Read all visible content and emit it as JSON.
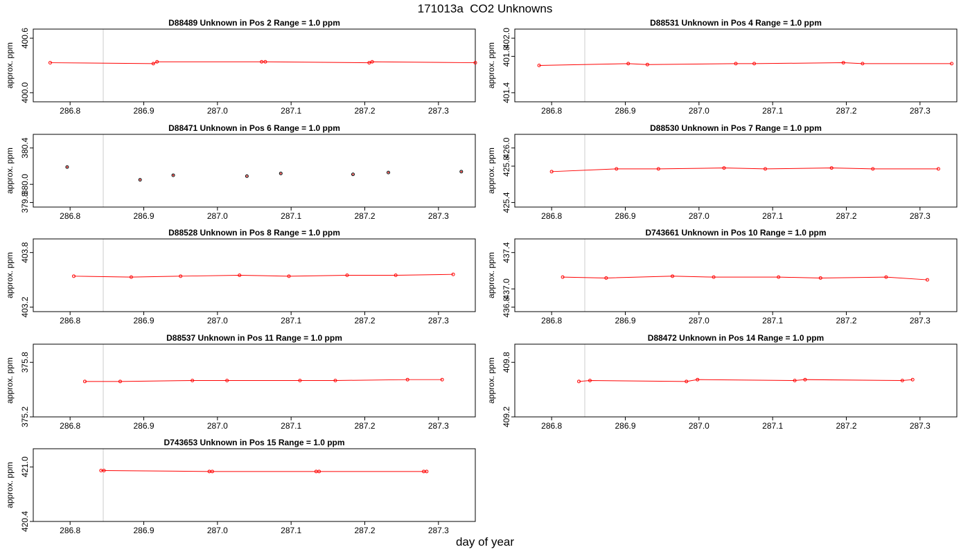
{
  "title": "171013a  CO2 Unknowns",
  "xlabel": "day of year",
  "ylabel": "approx. ppm",
  "colors": {
    "series": "#ff0000",
    "marker_black": "#000000",
    "frame": "#000000",
    "ref_line": "#cccccc"
  },
  "chart_data": [
    {
      "type": "line",
      "panel_title": "D88489    Unknown in Pos 2         Range = 1.0 ppm",
      "xlim": [
        286.75,
        287.35
      ],
      "ylim": [
        399.9,
        400.7
      ],
      "x_ticks": [
        "286.8",
        "286.9",
        "287.0",
        "287.1",
        "287.2",
        "287.3"
      ],
      "y_ticks": [
        "400.0",
        "400.6"
      ],
      "ref_lines_x": [
        286.845,
        287.35
      ],
      "series": [
        {
          "x": [
            286.773,
            286.913,
            286.918,
            287.06,
            287.065,
            287.206,
            287.21,
            287.35
          ],
          "y": [
            400.33,
            400.32,
            400.34,
            400.34,
            400.34,
            400.33,
            400.34,
            400.33
          ]
        }
      ],
      "markers_only": false
    },
    {
      "type": "line",
      "panel_title": "D88531    Unknown in Pos 4         Range = 1.0 ppm",
      "xlim": [
        286.75,
        287.35
      ],
      "ylim": [
        401.3,
        402.1
      ],
      "x_ticks": [
        "286.8",
        "286.9",
        "287.0",
        "287.1",
        "287.2",
        "287.3"
      ],
      "y_ticks": [
        "401.4",
        "401.8",
        "402.0"
      ],
      "ref_lines_x": [
        286.845,
        287.35
      ],
      "series": [
        {
          "x": [
            286.783,
            286.904,
            286.93,
            287.05,
            287.075,
            287.196,
            287.222,
            287.343
          ],
          "y": [
            401.7,
            401.72,
            401.71,
            401.72,
            401.72,
            401.73,
            401.72,
            401.72
          ]
        }
      ],
      "markers_only": false
    },
    {
      "type": "scatter",
      "panel_title": "D88471    Unknown in Pos 6         Range = 1.0 ppm",
      "xlim": [
        286.75,
        287.35
      ],
      "ylim": [
        379.75,
        380.55
      ],
      "x_ticks": [
        "286.8",
        "286.9",
        "287.0",
        "287.1",
        "287.2",
        "287.3"
      ],
      "y_ticks": [
        "379.8",
        "380.0",
        "380.4"
      ],
      "ref_lines_x": [
        286.845,
        287.35
      ],
      "series": [
        {
          "x": [
            286.796,
            286.895,
            286.94,
            287.04,
            287.086,
            287.184,
            287.232,
            287.331
          ],
          "y": [
            380.19,
            380.05,
            380.1,
            380.09,
            380.12,
            380.11,
            380.13,
            380.14
          ]
        }
      ],
      "markers_only": true
    },
    {
      "type": "line",
      "panel_title": "D88530    Unknown in Pos 7         Range = 1.0 ppm",
      "xlim": [
        286.75,
        287.35
      ],
      "ylim": [
        425.35,
        426.15
      ],
      "x_ticks": [
        "286.8",
        "286.9",
        "287.0",
        "287.1",
        "287.2",
        "287.3"
      ],
      "y_ticks": [
        "425.4",
        "425.8",
        "426.0"
      ],
      "ref_lines_x": [
        286.845,
        287.35
      ],
      "series": [
        {
          "x": [
            286.8,
            286.888,
            286.945,
            287.034,
            287.09,
            287.18,
            287.236,
            287.325
          ],
          "y": [
            425.74,
            425.77,
            425.77,
            425.78,
            425.77,
            425.78,
            425.77,
            425.77
          ]
        }
      ],
      "markers_only": false
    },
    {
      "type": "line",
      "panel_title": "D88528    Unknown in Pos 8         Range = 1.0 ppm",
      "xlim": [
        286.75,
        287.35
      ],
      "ylim": [
        403.15,
        403.95
      ],
      "x_ticks": [
        "286.8",
        "286.9",
        "287.0",
        "287.1",
        "287.2",
        "287.3"
      ],
      "y_ticks": [
        "403.2",
        "403.8"
      ],
      "ref_lines_x": [
        286.845,
        287.35
      ],
      "series": [
        {
          "x": [
            286.805,
            286.883,
            286.95,
            287.03,
            287.097,
            287.176,
            287.242,
            287.32
          ],
          "y": [
            403.54,
            403.53,
            403.54,
            403.55,
            403.54,
            403.55,
            403.55,
            403.56
          ]
        }
      ],
      "markers_only": false
    },
    {
      "type": "line",
      "panel_title": "D743661    Unknown in Pos 10         Range = 1.0 ppm",
      "xlim": [
        286.75,
        287.35
      ],
      "ylim": [
        436.75,
        437.55
      ],
      "x_ticks": [
        "286.8",
        "286.9",
        "287.0",
        "287.1",
        "287.2",
        "287.3"
      ],
      "y_ticks": [
        "436.8",
        "437.0",
        "437.4"
      ],
      "ref_lines_x": [
        286.845,
        287.35
      ],
      "series": [
        {
          "x": [
            286.815,
            286.874,
            286.964,
            287.02,
            287.108,
            287.165,
            287.254,
            287.31
          ],
          "y": [
            437.13,
            437.12,
            437.14,
            437.13,
            437.13,
            437.12,
            437.13,
            437.1
          ]
        }
      ],
      "markers_only": false
    },
    {
      "type": "line",
      "panel_title": "D88537    Unknown in Pos 11         Range = 1.0 ppm",
      "xlim": [
        286.75,
        287.35
      ],
      "ylim": [
        375.2,
        376.0
      ],
      "x_ticks": [
        "286.8",
        "286.9",
        "287.0",
        "287.1",
        "287.2",
        "287.3"
      ],
      "y_ticks": [
        "375.2",
        "375.8"
      ],
      "ref_lines_x": [
        286.845,
        287.35
      ],
      "series": [
        {
          "x": [
            286.82,
            286.868,
            286.966,
            287.013,
            287.112,
            287.16,
            287.258,
            287.305
          ],
          "y": [
            375.59,
            375.59,
            375.6,
            375.6,
            375.6,
            375.6,
            375.61,
            375.61
          ]
        }
      ],
      "markers_only": false
    },
    {
      "type": "line",
      "panel_title": "D88472    Unknown in Pos 14         Range = 1.0 ppm",
      "xlim": [
        286.75,
        287.35
      ],
      "ylim": [
        409.2,
        410.0
      ],
      "x_ticks": [
        "286.8",
        "286.9",
        "287.0",
        "287.1",
        "287.2",
        "287.3"
      ],
      "y_ticks": [
        "409.2",
        "409.8"
      ],
      "ref_lines_x": [
        286.845,
        287.35
      ],
      "series": [
        {
          "x": [
            286.837,
            286.852,
            286.983,
            286.998,
            287.13,
            287.144,
            287.276,
            287.29
          ],
          "y": [
            409.59,
            409.6,
            409.59,
            409.61,
            409.6,
            409.61,
            409.6,
            409.61
          ]
        }
      ],
      "markers_only": false
    },
    {
      "type": "line",
      "panel_title": "D743653    Unknown in Pos 15         Range = 1.0 ppm",
      "xlim": [
        286.75,
        287.35
      ],
      "ylim": [
        420.4,
        421.2
      ],
      "x_ticks": [
        "286.8",
        "286.9",
        "287.0",
        "287.1",
        "287.2",
        "287.3"
      ],
      "y_ticks": [
        "420.4",
        "421.0"
      ],
      "ref_lines_x": [
        286.845,
        287.35
      ],
      "series": [
        {
          "x": [
            286.842,
            286.846,
            286.989,
            286.993,
            287.134,
            287.138,
            287.28,
            287.284
          ],
          "y": [
            420.96,
            420.96,
            420.95,
            420.95,
            420.95,
            420.95,
            420.95,
            420.95
          ]
        }
      ],
      "markers_only": false
    }
  ]
}
